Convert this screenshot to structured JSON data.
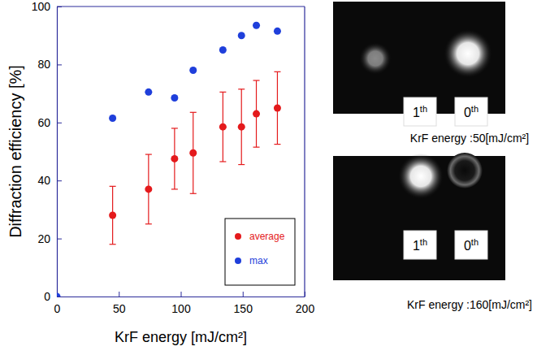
{
  "chart_data": {
    "type": "scatter",
    "x_label": "KrF energy [mJ/cm²]",
    "y_label": "Diffraction efficiency [%]",
    "xlim": [
      0,
      200
    ],
    "xticks": [
      0,
      50,
      100,
      150,
      200
    ],
    "ylim": [
      0,
      100
    ],
    "yticks": [
      0,
      20,
      40,
      60,
      80,
      100
    ],
    "legend": "lower right",
    "series": [
      {
        "name": "average",
        "color": "#e41a1c",
        "marker": "circle",
        "x": [
          45,
          74,
          95,
          110,
          134,
          149,
          161,
          178
        ],
        "values": [
          28,
          37,
          47.5,
          49.5,
          58.5,
          58.5,
          63,
          65
        ],
        "errors": [
          10,
          12,
          10.5,
          14,
          12,
          13,
          11.5,
          12.5
        ]
      },
      {
        "name": "max",
        "color": "#1f3fdb",
        "marker": "circle",
        "x": [
          0,
          45,
          74,
          95,
          110,
          134,
          149,
          161,
          178
        ],
        "values": [
          0,
          61.5,
          70.5,
          68.5,
          78,
          85,
          90,
          93.5,
          91.5
        ]
      }
    ]
  },
  "images": [
    {
      "caption": "KrF energy :50[mJ/cm²]",
      "labels": [
        "1th",
        "0th"
      ]
    },
    {
      "caption": "KrF energy :160[mJ/cm²]",
      "labels": [
        "1th",
        "0th"
      ]
    }
  ]
}
